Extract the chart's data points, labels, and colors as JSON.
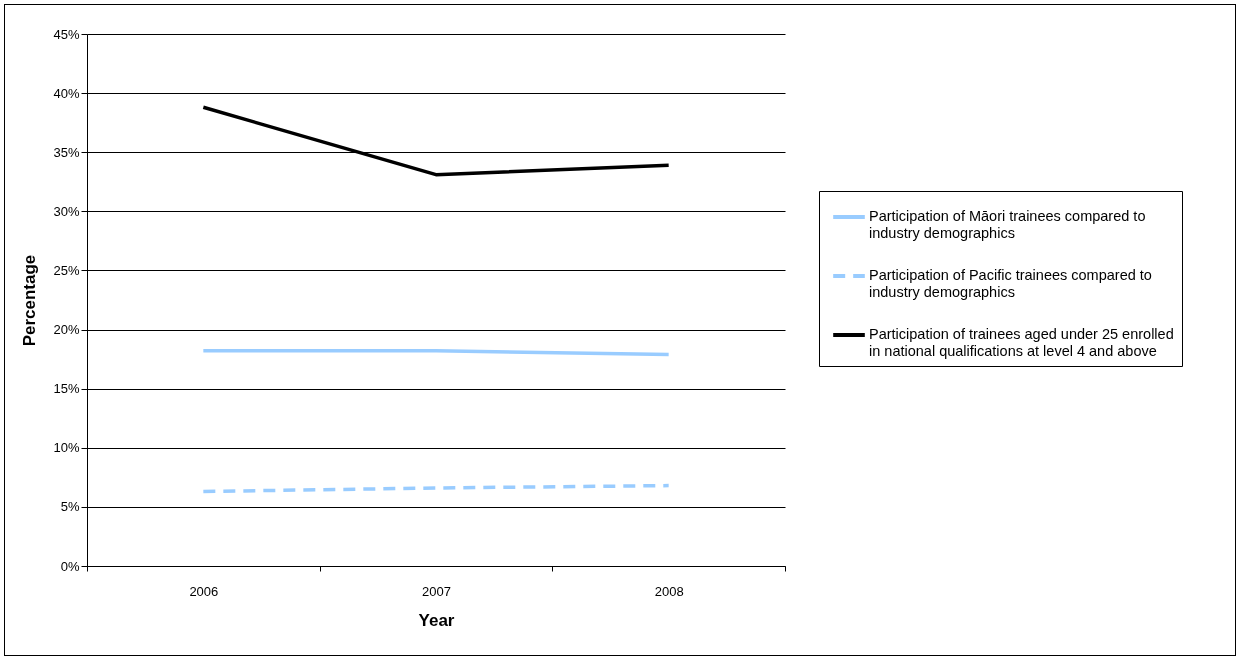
{
  "chart_data": {
    "type": "line",
    "xlabel": "Year",
    "ylabel": "Percentage",
    "categories": [
      "2006",
      "2007",
      "2008"
    ],
    "series": [
      {
        "name": "Participation of Māori trainees compared to industry demographics",
        "color": "#99ccff",
        "line_style": "solid",
        "values": [
          18.2,
          18.2,
          17.9
        ]
      },
      {
        "name": "Participation of Pacific trainees compared to industry demographics",
        "color": "#99ccff",
        "line_style": "dashed",
        "values": [
          6.3,
          6.6,
          6.8
        ]
      },
      {
        "name": "Participation of trainees aged under 25 enrolled in national qualifications at level 4 and above",
        "color": "#000000",
        "line_style": "solid",
        "values": [
          38.8,
          33.1,
          33.9
        ]
      }
    ],
    "ylim": [
      0,
      45
    ],
    "yticks": [
      {
        "value": 0,
        "label": "0%"
      },
      {
        "value": 5,
        "label": "5%"
      },
      {
        "value": 10,
        "label": "10%"
      },
      {
        "value": 15,
        "label": "15%"
      },
      {
        "value": 20,
        "label": "20%"
      },
      {
        "value": 25,
        "label": "25%"
      },
      {
        "value": 30,
        "label": "30%"
      },
      {
        "value": 35,
        "label": "35%"
      },
      {
        "value": 40,
        "label": "40%"
      },
      {
        "value": 45,
        "label": "45%"
      }
    ],
    "grid": "y",
    "legend": "right",
    "marker": "none"
  }
}
